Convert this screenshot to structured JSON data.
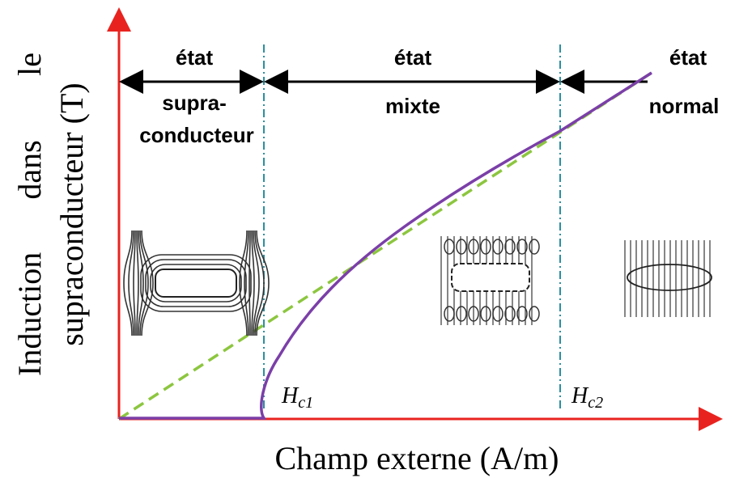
{
  "regions": [
    {
      "lines": [
        "état",
        "supra-",
        "conducteur"
      ]
    },
    {
      "lines": [
        "état",
        "mixte"
      ]
    },
    {
      "lines": [
        "état",
        "normal"
      ]
    }
  ],
  "critical_fields": [
    {
      "symbol": "H",
      "subscript": "c1"
    },
    {
      "symbol": "H",
      "subscript": "c2"
    }
  ],
  "axes": {
    "x_label": "Champ externe (A/m)",
    "y_label_lines": [
      "Induction",
      "dans",
      "le",
      "supraconducteur (T)"
    ]
  }
}
